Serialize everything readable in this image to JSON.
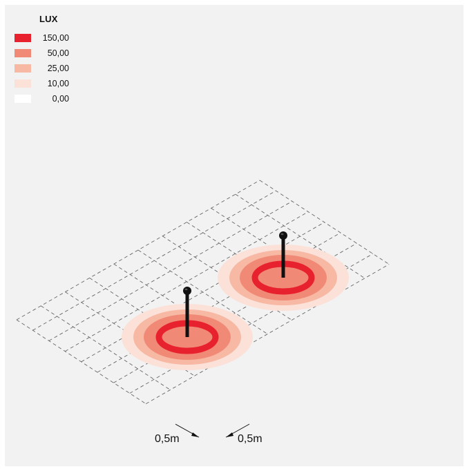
{
  "legend": {
    "title": "LUX",
    "items": [
      {
        "value": "150,00",
        "color": "#e8212e"
      },
      {
        "value": "50,00",
        "color": "#f08a76"
      },
      {
        "value": "25,00",
        "color": "#f7b8a4"
      },
      {
        "value": "10,00",
        "color": "#fbe1d8"
      },
      {
        "value": "0,00",
        "color": "#ffffff"
      }
    ]
  },
  "grid": {
    "columns": 10,
    "rows": 8,
    "line_color": "#666666"
  },
  "fixtures": [
    {
      "name": "bollard-light-1",
      "icon": "lamp-post-icon"
    },
    {
      "name": "bollard-light-2",
      "icon": "lamp-post-icon"
    }
  ],
  "dimensions": {
    "width_label": "0,5m",
    "depth_label": "0,5m"
  }
}
